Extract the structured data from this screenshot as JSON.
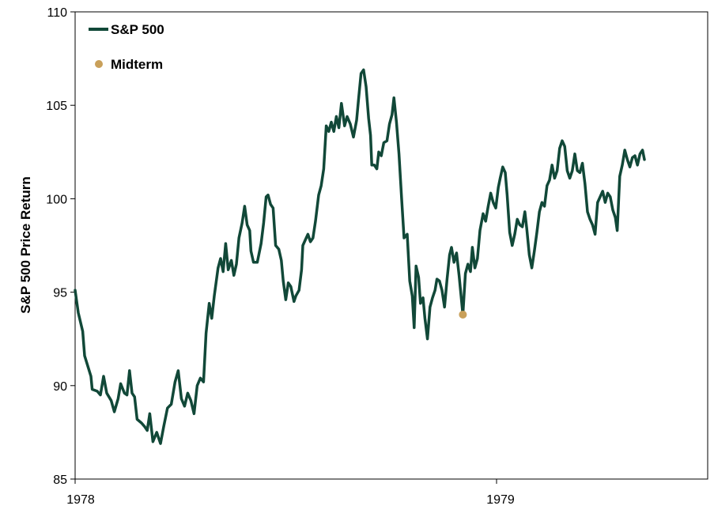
{
  "chart_data": {
    "type": "line",
    "title": "",
    "xlabel": "",
    "ylabel": "S&P 500 Price Return",
    "ylim": [
      85,
      110
    ],
    "yticks": [
      85,
      90,
      95,
      100,
      105,
      110
    ],
    "x_ticks": [
      "1978",
      "1979"
    ],
    "grid": false,
    "legend_position": "top-left",
    "series": [
      {
        "name": "S&P 500",
        "color": "#114838",
        "x_index_max": 100,
        "points": [
          [
            0,
            95.1
          ],
          [
            0.5,
            93.9
          ],
          [
            1.2,
            92.9
          ],
          [
            1.5,
            91.6
          ],
          [
            2.5,
            90.5
          ],
          [
            2.7,
            89.8
          ],
          [
            3.5,
            89.7
          ],
          [
            4.0,
            89.5
          ],
          [
            4.5,
            90.5
          ],
          [
            5.0,
            89.6
          ],
          [
            5.7,
            89.2
          ],
          [
            6.2,
            88.6
          ],
          [
            6.8,
            89.3
          ],
          [
            7.2,
            90.1
          ],
          [
            7.8,
            89.6
          ],
          [
            8.2,
            89.5
          ],
          [
            8.6,
            90.8
          ],
          [
            9.0,
            89.6
          ],
          [
            9.4,
            89.4
          ],
          [
            9.8,
            88.2
          ],
          [
            10.5,
            88.0
          ],
          [
            11.0,
            87.8
          ],
          [
            11.4,
            87.6
          ],
          [
            11.8,
            88.5
          ],
          [
            12.3,
            87.0
          ],
          [
            12.9,
            87.5
          ],
          [
            13.5,
            86.9
          ],
          [
            14.0,
            87.8
          ],
          [
            14.6,
            88.8
          ],
          [
            15.2,
            89.0
          ],
          [
            15.8,
            90.2
          ],
          [
            16.3,
            90.8
          ],
          [
            16.8,
            89.3
          ],
          [
            17.3,
            88.9
          ],
          [
            17.8,
            89.6
          ],
          [
            18.3,
            89.2
          ],
          [
            18.8,
            88.5
          ],
          [
            19.3,
            90.0
          ],
          [
            19.8,
            90.4
          ],
          [
            20.3,
            90.2
          ],
          [
            20.7,
            92.8
          ],
          [
            21.2,
            94.4
          ],
          [
            21.6,
            93.6
          ],
          [
            22.0,
            94.8
          ],
          [
            22.6,
            96.3
          ],
          [
            23.0,
            96.8
          ],
          [
            23.4,
            96.1
          ],
          [
            23.8,
            97.6
          ],
          [
            24.2,
            96.2
          ],
          [
            24.7,
            96.7
          ],
          [
            25.1,
            95.9
          ],
          [
            25.5,
            96.5
          ],
          [
            25.9,
            97.9
          ],
          [
            26.4,
            98.7
          ],
          [
            26.8,
            99.6
          ],
          [
            27.2,
            98.6
          ],
          [
            27.6,
            98.3
          ],
          [
            27.8,
            97.2
          ],
          [
            28.2,
            96.6
          ],
          [
            28.8,
            96.6
          ],
          [
            29.4,
            97.6
          ],
          [
            29.8,
            98.7
          ],
          [
            30.2,
            100.1
          ],
          [
            30.5,
            100.2
          ],
          [
            30.9,
            99.7
          ],
          [
            31.3,
            99.5
          ],
          [
            31.7,
            97.5
          ],
          [
            32.2,
            97.3
          ],
          [
            32.6,
            96.7
          ],
          [
            32.9,
            95.6
          ],
          [
            33.3,
            94.6
          ],
          [
            33.7,
            95.5
          ],
          [
            34.1,
            95.3
          ],
          [
            34.6,
            94.5
          ],
          [
            34.9,
            94.8
          ],
          [
            35.4,
            95.1
          ],
          [
            35.8,
            96.2
          ],
          [
            36.0,
            97.5
          ],
          [
            36.4,
            97.8
          ],
          [
            36.8,
            98.1
          ],
          [
            37.2,
            97.7
          ],
          [
            37.6,
            97.9
          ],
          [
            38.0,
            98.8
          ],
          [
            38.5,
            100.2
          ],
          [
            38.9,
            100.7
          ],
          [
            39.3,
            101.6
          ],
          [
            39.7,
            103.9
          ],
          [
            40.1,
            103.6
          ],
          [
            40.5,
            104.1
          ],
          [
            40.9,
            103.6
          ],
          [
            41.3,
            104.4
          ],
          [
            41.7,
            103.8
          ],
          [
            42.1,
            105.1
          ],
          [
            42.6,
            103.9
          ],
          [
            43.0,
            104.4
          ],
          [
            43.5,
            104.0
          ],
          [
            44.0,
            103.3
          ],
          [
            44.5,
            104.2
          ],
          [
            44.8,
            105.3
          ],
          [
            45.2,
            106.7
          ],
          [
            45.6,
            106.9
          ],
          [
            46.0,
            106.0
          ],
          [
            46.4,
            104.3
          ],
          [
            46.7,
            103.4
          ],
          [
            46.9,
            101.8
          ],
          [
            47.3,
            101.8
          ],
          [
            47.7,
            101.6
          ],
          [
            48.0,
            102.5
          ],
          [
            48.4,
            102.3
          ],
          [
            48.8,
            103.0
          ],
          [
            49.3,
            103.1
          ],
          [
            49.7,
            104.0
          ],
          [
            50.1,
            104.5
          ],
          [
            50.4,
            105.4
          ],
          [
            50.8,
            104.1
          ],
          [
            51.2,
            102.4
          ],
          [
            51.6,
            100.1
          ],
          [
            52.0,
            97.9
          ],
          [
            52.5,
            98.1
          ],
          [
            52.9,
            95.6
          ],
          [
            53.3,
            94.8
          ],
          [
            53.6,
            93.1
          ],
          [
            53.9,
            96.4
          ],
          [
            54.3,
            95.8
          ],
          [
            54.6,
            94.4
          ],
          [
            55.0,
            94.7
          ],
          [
            55.3,
            93.6
          ],
          [
            55.7,
            92.5
          ],
          [
            56.1,
            94.2
          ],
          [
            56.5,
            94.7
          ],
          [
            56.9,
            95.1
          ],
          [
            57.2,
            95.7
          ],
          [
            57.6,
            95.6
          ],
          [
            58.0,
            95.1
          ],
          [
            58.4,
            94.2
          ],
          [
            58.8,
            95.7
          ],
          [
            59.2,
            97.0
          ],
          [
            59.5,
            97.4
          ],
          [
            59.9,
            96.6
          ],
          [
            60.3,
            97.1
          ],
          [
            60.7,
            95.9
          ],
          [
            61.1,
            94.5
          ],
          [
            61.3,
            93.8
          ],
          [
            61.7,
            96.0
          ],
          [
            62.1,
            96.5
          ],
          [
            62.5,
            96.1
          ],
          [
            62.8,
            97.4
          ],
          [
            63.2,
            96.3
          ],
          [
            63.6,
            96.8
          ],
          [
            64.0,
            98.3
          ],
          [
            64.5,
            99.2
          ],
          [
            64.9,
            98.8
          ],
          [
            65.3,
            99.6
          ],
          [
            65.7,
            100.3
          ],
          [
            66.1,
            99.8
          ],
          [
            66.5,
            99.5
          ],
          [
            66.9,
            100.6
          ],
          [
            67.2,
            101.1
          ],
          [
            67.6,
            101.7
          ],
          [
            68.0,
            101.4
          ],
          [
            68.3,
            100.2
          ],
          [
            68.7,
            98.2
          ],
          [
            69.1,
            97.5
          ],
          [
            69.5,
            98.1
          ],
          [
            69.9,
            98.9
          ],
          [
            70.3,
            98.6
          ],
          [
            70.7,
            98.5
          ],
          [
            71.1,
            99.3
          ],
          [
            71.4,
            98.4
          ],
          [
            71.8,
            97.0
          ],
          [
            72.2,
            96.3
          ],
          [
            72.6,
            97.2
          ],
          [
            73.0,
            98.2
          ],
          [
            73.4,
            99.3
          ],
          [
            73.8,
            99.8
          ],
          [
            74.2,
            99.6
          ],
          [
            74.6,
            100.7
          ],
          [
            75.0,
            101.0
          ],
          [
            75.4,
            101.8
          ],
          [
            75.8,
            101.1
          ],
          [
            76.2,
            101.5
          ],
          [
            76.6,
            102.7
          ],
          [
            77.0,
            103.1
          ],
          [
            77.4,
            102.8
          ],
          [
            77.8,
            101.5
          ],
          [
            78.2,
            101.1
          ],
          [
            78.6,
            101.5
          ],
          [
            79.0,
            102.4
          ],
          [
            79.4,
            101.5
          ],
          [
            79.8,
            101.4
          ],
          [
            80.2,
            101.9
          ],
          [
            80.6,
            100.8
          ],
          [
            81.0,
            99.3
          ],
          [
            81.4,
            98.9
          ],
          [
            81.8,
            98.6
          ],
          [
            82.2,
            98.1
          ],
          [
            82.6,
            99.8
          ],
          [
            83.0,
            100.1
          ],
          [
            83.4,
            100.4
          ],
          [
            83.8,
            99.8
          ],
          [
            84.2,
            100.3
          ],
          [
            84.6,
            100.1
          ],
          [
            85.0,
            99.4
          ],
          [
            85.4,
            99.0
          ],
          [
            85.7,
            98.3
          ],
          [
            86.1,
            101.2
          ],
          [
            86.5,
            101.8
          ],
          [
            86.9,
            102.6
          ],
          [
            87.3,
            102.1
          ],
          [
            87.7,
            101.7
          ],
          [
            88.1,
            102.2
          ],
          [
            88.5,
            102.3
          ],
          [
            88.9,
            101.8
          ],
          [
            89.3,
            102.4
          ],
          [
            89.7,
            102.6
          ],
          [
            90,
            102.1
          ]
        ]
      }
    ],
    "markers": [
      {
        "name": "Midterm",
        "color": "#c9a05a",
        "x": 61.3,
        "y": 93.8
      }
    ]
  }
}
